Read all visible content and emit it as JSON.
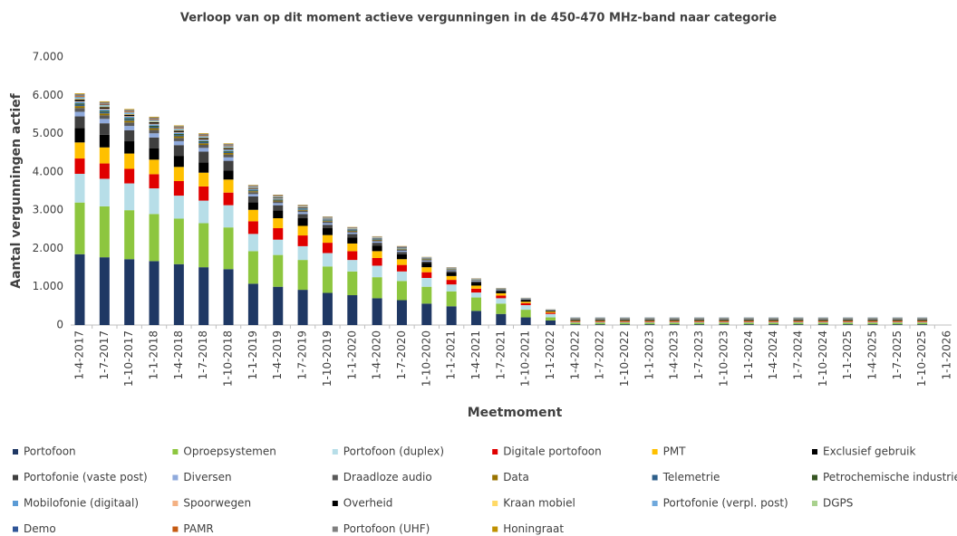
{
  "chart_data": {
    "type": "stacked_bar",
    "title": "Verloop van op dit moment actieve vergunningen  in de 450-470 MHz-band naar categorie",
    "x_label": "Meetmoment",
    "y_label": "Aantal vergunningen actief",
    "categories": [
      "1-4-2017",
      "1-7-2017",
      "1-10-2017",
      "1-1-2018",
      "1-4-2018",
      "1-7-2018",
      "1-10-2018",
      "1-1-2019",
      "1-4-2019",
      "1-7-2019",
      "1-10-2019",
      "1-1-2020",
      "1-4-2020",
      "1-7-2020",
      "1-10-2020",
      "1-1-2021",
      "1-4-2021",
      "1-7-2021",
      "1-10-2021",
      "1-1-2022",
      "1-4-2022",
      "1-7-2022",
      "1-10-2022",
      "1-1-2023",
      "1-4-2023",
      "1-7-2023",
      "1-10-2023",
      "1-1-2024",
      "1-4-2024",
      "1-7-2024",
      "1-10-2024",
      "1-1-2025",
      "1-4-2025",
      "1-7-2025",
      "1-10-2025",
      "1-1-2026"
    ],
    "ylim": [
      0,
      7000
    ],
    "yticks": [
      0,
      {
        "value": 1000,
        "label": "1.000"
      },
      {
        "value": 2000,
        "label": "2.000"
      },
      {
        "value": 3000,
        "label": "3.000"
      },
      {
        "value": 4000,
        "label": "4.000"
      },
      {
        "value": 5000,
        "label": "5.000"
      },
      {
        "value": 6000,
        "label": "6.000"
      },
      {
        "value": 7000,
        "label": "7.000"
      }
    ],
    "grid": false,
    "legend": "bottom",
    "series": [
      {
        "name": "Portofoon",
        "color": "#1f3864",
        "values": [
          1850,
          1770,
          1720,
          1670,
          1590,
          1510,
          1460,
          1080,
          1000,
          920,
          840,
          780,
          700,
          650,
          560,
          490,
          370,
          290,
          200,
          120,
          20,
          20,
          20,
          20,
          20,
          20,
          20,
          20,
          20,
          20,
          20,
          20,
          20,
          20,
          20,
          null
        ]
      },
      {
        "name": "Oproepsystemen",
        "color": "#8dc63f",
        "values": [
          1350,
          1330,
          1280,
          1230,
          1190,
          1150,
          1090,
          850,
          830,
          780,
          690,
          620,
          550,
          500,
          440,
          390,
          350,
          270,
          200,
          80,
          40,
          40,
          40,
          40,
          40,
          40,
          40,
          40,
          40,
          40,
          40,
          40,
          40,
          40,
          40,
          null
        ]
      },
      {
        "name": "Portofoon (duplex)",
        "color": "#b7dee8",
        "values": [
          750,
          720,
          700,
          670,
          600,
          590,
          580,
          450,
          400,
          360,
          350,
          300,
          300,
          250,
          230,
          180,
          130,
          140,
          120,
          90,
          20,
          20,
          20,
          20,
          20,
          20,
          20,
          20,
          20,
          20,
          20,
          20,
          20,
          20,
          20,
          null
        ]
      },
      {
        "name": "Digitale portofoon",
        "color": "#e00000",
        "values": [
          400,
          400,
          380,
          370,
          380,
          370,
          330,
          330,
          300,
          280,
          270,
          230,
          200,
          170,
          150,
          120,
          100,
          70,
          50,
          30,
          15,
          15,
          15,
          15,
          15,
          15,
          15,
          15,
          15,
          15,
          15,
          15,
          15,
          15,
          15,
          null
        ]
      },
      {
        "name": "PMT",
        "color": "#ffc000",
        "values": [
          420,
          420,
          400,
          380,
          370,
          360,
          340,
          300,
          260,
          250,
          200,
          200,
          180,
          150,
          130,
          100,
          80,
          60,
          40,
          30,
          15,
          15,
          15,
          15,
          15,
          15,
          15,
          15,
          15,
          15,
          15,
          15,
          15,
          15,
          15,
          null
        ]
      },
      {
        "name": "Exclusief gebruik",
        "color": "#000000",
        "values": [
          380,
          330,
          320,
          300,
          290,
          270,
          240,
          200,
          200,
          200,
          180,
          160,
          140,
          130,
          110,
          90,
          80,
          60,
          40,
          20,
          20,
          20,
          20,
          20,
          20,
          20,
          20,
          20,
          20,
          20,
          20,
          20,
          20,
          20,
          20,
          null
        ]
      },
      {
        "name": "Portofonie (vaste post)",
        "color": "#404040",
        "values": [
          300,
          300,
          290,
          280,
          280,
          280,
          250,
          150,
          140,
          110,
          90,
          90,
          80,
          60,
          40,
          40,
          30,
          20,
          20,
          10,
          10,
          10,
          10,
          10,
          10,
          10,
          10,
          10,
          10,
          10,
          10,
          10,
          10,
          10,
          10,
          null
        ]
      },
      {
        "name": "Diversen",
        "color": "#8faadc",
        "values": [
          120,
          114,
          110,
          108,
          102,
          96,
          90,
          60,
          54,
          48,
          42,
          36,
          34,
          30,
          24,
          20,
          16,
          12,
          8,
          6,
          10,
          10,
          10,
          10,
          10,
          10,
          10,
          10,
          10,
          10,
          10,
          10,
          10,
          10,
          10,
          null
        ]
      },
      {
        "name": "Draadloze audio",
        "color": "#595959",
        "values": [
          100,
          95,
          92,
          90,
          85,
          80,
          75,
          50,
          45,
          40,
          35,
          30,
          28,
          25,
          20,
          17,
          13,
          10,
          7,
          5,
          10,
          10,
          10,
          10,
          10,
          10,
          10,
          10,
          10,
          10,
          10,
          10,
          10,
          10,
          10,
          null
        ]
      },
      {
        "name": "Data",
        "color": "#997300",
        "values": [
          50,
          48,
          46,
          45,
          43,
          40,
          38,
          25,
          23,
          20,
          18,
          15,
          14,
          13,
          10,
          9,
          7,
          5,
          4,
          3,
          5,
          5,
          5,
          5,
          5,
          5,
          5,
          5,
          5,
          5,
          5,
          5,
          5,
          5,
          5,
          null
        ]
      },
      {
        "name": "Telemetrie",
        "color": "#2e5f8a",
        "values": [
          40,
          38,
          37,
          36,
          34,
          32,
          30,
          20,
          18,
          16,
          14,
          12,
          11,
          10,
          8,
          7,
          5,
          4,
          3,
          2,
          5,
          5,
          5,
          5,
          5,
          5,
          5,
          5,
          5,
          5,
          5,
          5,
          5,
          5,
          5,
          null
        ]
      },
      {
        "name": "Petrochemische industrie",
        "color": "#375623",
        "values": [
          30,
          29,
          28,
          27,
          26,
          24,
          23,
          15,
          14,
          12,
          11,
          9,
          8,
          8,
          6,
          5,
          4,
          3,
          2,
          2,
          5,
          5,
          5,
          5,
          5,
          5,
          5,
          5,
          5,
          5,
          5,
          5,
          5,
          5,
          5,
          null
        ]
      },
      {
        "name": "Mobilofonie (digitaal)",
        "color": "#5b9bd5",
        "values": [
          40,
          38,
          37,
          36,
          34,
          32,
          30,
          20,
          18,
          16,
          14,
          12,
          11,
          10,
          8,
          7,
          5,
          4,
          3,
          2,
          5,
          5,
          5,
          5,
          5,
          5,
          5,
          5,
          5,
          5,
          5,
          5,
          5,
          5,
          5,
          null
        ]
      },
      {
        "name": "Spoorwegen",
        "color": "#f4b183",
        "values": [
          20,
          19,
          18,
          18,
          17,
          16,
          15,
          10,
          9,
          8,
          7,
          6,
          6,
          5,
          4,
          3,
          3,
          2,
          1,
          1,
          5,
          5,
          5,
          5,
          5,
          5,
          5,
          5,
          5,
          5,
          5,
          5,
          5,
          5,
          5,
          null
        ]
      },
      {
        "name": "Overheid",
        "color": "#000000",
        "values": [
          40,
          38,
          37,
          36,
          34,
          32,
          30,
          20,
          18,
          16,
          14,
          12,
          11,
          10,
          8,
          7,
          5,
          4,
          3,
          2,
          5,
          5,
          5,
          5,
          5,
          5,
          5,
          5,
          5,
          5,
          5,
          5,
          5,
          5,
          5,
          null
        ]
      },
      {
        "name": "Kraan mobiel",
        "color": "#ffd966",
        "values": [
          20,
          19,
          18,
          18,
          17,
          16,
          15,
          10,
          9,
          8,
          7,
          6,
          6,
          5,
          4,
          3,
          3,
          2,
          1,
          1,
          0,
          0,
          0,
          0,
          0,
          0,
          0,
          0,
          0,
          0,
          0,
          0,
          0,
          0,
          0,
          null
        ]
      },
      {
        "name": "Portofonie (verpl. post)",
        "color": "#6fa8dc",
        "values": [
          30,
          29,
          28,
          27,
          26,
          24,
          23,
          15,
          14,
          12,
          11,
          9,
          8,
          8,
          6,
          5,
          4,
          3,
          2,
          2,
          5,
          5,
          5,
          5,
          5,
          5,
          5,
          5,
          5,
          5,
          5,
          5,
          5,
          5,
          5,
          null
        ]
      },
      {
        "name": "DGPS",
        "color": "#a9d18e",
        "values": [
          10,
          10,
          9,
          9,
          9,
          8,
          8,
          5,
          5,
          4,
          4,
          3,
          3,
          3,
          2,
          2,
          1,
          1,
          1,
          1,
          0,
          0,
          0,
          0,
          0,
          0,
          0,
          0,
          0,
          0,
          0,
          0,
          0,
          0,
          0,
          null
        ]
      },
      {
        "name": "Demo",
        "color": "#2f5597",
        "values": [
          10,
          10,
          9,
          9,
          9,
          8,
          8,
          5,
          5,
          4,
          4,
          3,
          3,
          3,
          2,
          2,
          1,
          1,
          1,
          1,
          0,
          0,
          0,
          0,
          0,
          0,
          0,
          0,
          0,
          0,
          0,
          0,
          0,
          0,
          0,
          null
        ]
      },
      {
        "name": "PAMR",
        "color": "#c55a11",
        "values": [
          20,
          19,
          18,
          18,
          17,
          16,
          15,
          10,
          9,
          8,
          7,
          6,
          6,
          5,
          4,
          3,
          3,
          2,
          1,
          1,
          0,
          0,
          0,
          0,
          0,
          0,
          0,
          0,
          0,
          0,
          0,
          0,
          0,
          0,
          0,
          null
        ]
      },
      {
        "name": "Portofoon (UHF)",
        "color": "#7f7f7f",
        "values": [
          50,
          48,
          46,
          45,
          43,
          40,
          38,
          25,
          23,
          20,
          18,
          15,
          14,
          13,
          10,
          9,
          7,
          5,
          4,
          3,
          5,
          5,
          5,
          5,
          5,
          5,
          5,
          5,
          5,
          5,
          5,
          5,
          5,
          5,
          5,
          null
        ]
      },
      {
        "name": "Honingraat",
        "color": "#bf9000",
        "values": [
          20,
          19,
          18,
          18,
          17,
          16,
          15,
          10,
          9,
          8,
          7,
          6,
          6,
          5,
          4,
          3,
          3,
          2,
          1,
          1,
          0,
          0,
          0,
          0,
          0,
          0,
          0,
          0,
          0,
          0,
          0,
          0,
          0,
          0,
          0,
          null
        ]
      }
    ]
  }
}
